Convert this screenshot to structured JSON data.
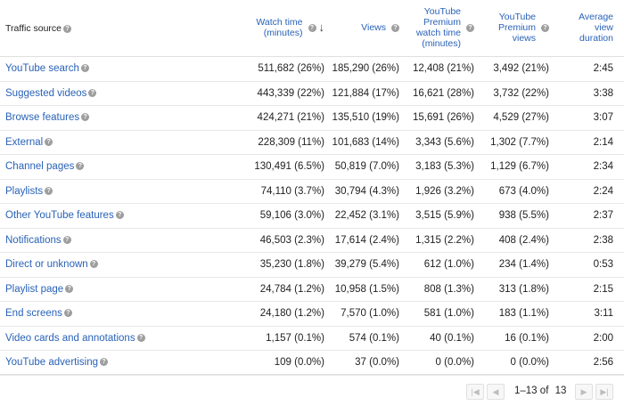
{
  "header": {
    "source": "Traffic source",
    "watch_time": [
      "Watch time",
      "(minutes)"
    ],
    "views": "Views",
    "premium_watch": [
      "YouTube",
      "Premium",
      "watch time",
      "(minutes)"
    ],
    "premium_views": [
      "YouTube",
      "Premium",
      "views"
    ],
    "avg_duration": [
      "Average",
      "view",
      "duration"
    ]
  },
  "rows": [
    {
      "name": "YouTube search",
      "watch": "511,682 (26%)",
      "views": "185,290 (26%)",
      "pwatch": "12,408 (21%)",
      "pviews": "3,492 (21%)",
      "avg": "2:45"
    },
    {
      "name": "Suggested videos",
      "watch": "443,339 (22%)",
      "views": "121,884 (17%)",
      "pwatch": "16,621 (28%)",
      "pviews": "3,732 (22%)",
      "avg": "3:38"
    },
    {
      "name": "Browse features",
      "watch": "424,271 (21%)",
      "views": "135,510 (19%)",
      "pwatch": "15,691 (26%)",
      "pviews": "4,529 (27%)",
      "avg": "3:07"
    },
    {
      "name": "External",
      "watch": "228,309 (11%)",
      "views": "101,683 (14%)",
      "pwatch": "3,343 (5.6%)",
      "pviews": "1,302 (7.7%)",
      "avg": "2:14"
    },
    {
      "name": "Channel pages",
      "watch": "130,491 (6.5%)",
      "views": "50,819 (7.0%)",
      "pwatch": "3,183 (5.3%)",
      "pviews": "1,129 (6.7%)",
      "avg": "2:34"
    },
    {
      "name": "Playlists",
      "watch": "74,110 (3.7%)",
      "views": "30,794 (4.3%)",
      "pwatch": "1,926 (3.2%)",
      "pviews": "673 (4.0%)",
      "avg": "2:24"
    },
    {
      "name": "Other YouTube features",
      "watch": "59,106 (3.0%)",
      "views": "22,452 (3.1%)",
      "pwatch": "3,515 (5.9%)",
      "pviews": "938 (5.5%)",
      "avg": "2:37"
    },
    {
      "name": "Notifications",
      "watch": "46,503 (2.3%)",
      "views": "17,614 (2.4%)",
      "pwatch": "1,315 (2.2%)",
      "pviews": "408 (2.4%)",
      "avg": "2:38"
    },
    {
      "name": "Direct or unknown",
      "watch": "35,230 (1.8%)",
      "views": "39,279 (5.4%)",
      "pwatch": "612 (1.0%)",
      "pviews": "234 (1.4%)",
      "avg": "0:53"
    },
    {
      "name": "Playlist page",
      "watch": "24,784 (1.2%)",
      "views": "10,958 (1.5%)",
      "pwatch": "808 (1.3%)",
      "pviews": "313 (1.8%)",
      "avg": "2:15"
    },
    {
      "name": "End screens",
      "watch": "24,180 (1.2%)",
      "views": "7,570 (1.0%)",
      "pwatch": "581 (1.0%)",
      "pviews": "183 (1.1%)",
      "avg": "3:11"
    },
    {
      "name": "Video cards and annotations",
      "watch": "1,157 (0.1%)",
      "views": "574 (0.1%)",
      "pwatch": "40 (0.1%)",
      "pviews": "16 (0.1%)",
      "avg": "2:00"
    },
    {
      "name": "YouTube advertising",
      "watch": "109 (0.0%)",
      "views": "37 (0.0%)",
      "pwatch": "0 (0.0%)",
      "pviews": "0 (0.0%)",
      "avg": "2:56"
    }
  ],
  "pager": {
    "range": "1–13",
    "of": "of",
    "total": "13"
  },
  "icons": {
    "help": "help-circle-icon",
    "sort": "arrow-down-icon",
    "first": "first-page-icon",
    "prev": "chevron-left-icon",
    "next": "chevron-right-icon",
    "last": "last-page-icon"
  },
  "colors": {
    "link": "#2962b8",
    "text": "#212121",
    "help": "#9e9e9e"
  }
}
